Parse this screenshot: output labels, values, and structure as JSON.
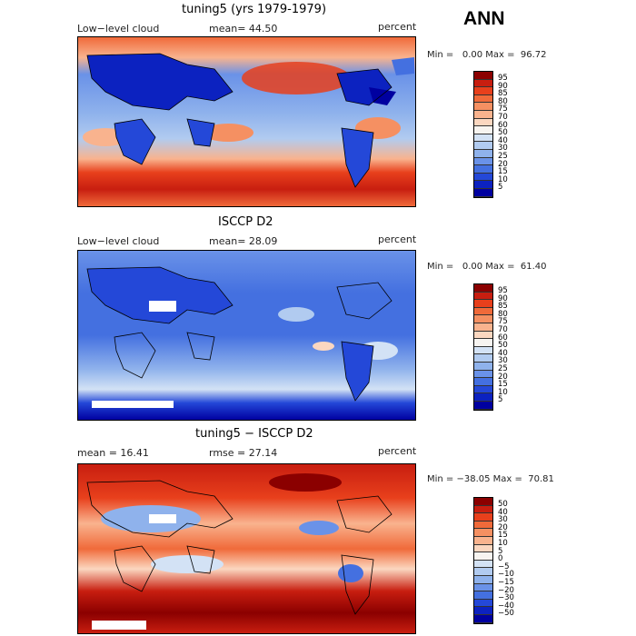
{
  "season": "ANN",
  "panels": [
    {
      "title": "tuning5 (yrs 1979-1979)",
      "left_label": "Low−level cloud",
      "mid_label": "mean=  44.50",
      "right_label": "percent",
      "minmax": "Min =   0.00 Max =  96.72",
      "levels": [
        "95",
        "90",
        "85",
        "80",
        "75",
        "70",
        "60",
        "50",
        "40",
        "30",
        "25",
        "20",
        "15",
        "10",
        "5"
      ],
      "colors": [
        "#8b0000",
        "#c81e10",
        "#e8401c",
        "#f06a3a",
        "#f59062",
        "#f9b38e",
        "#fbd7c0",
        "#f7f4f0",
        "#d3e2f5",
        "#b1cbf0",
        "#8fb2ec",
        "#6a92e8",
        "#4470e0",
        "#2448d8",
        "#0c22c0",
        "#0000a0"
      ]
    },
    {
      "title": "ISCCP D2",
      "left_label": "Low−level cloud",
      "mid_label": "mean=  28.09",
      "right_label": "percent",
      "minmax": "Min =   0.00 Max =  61.40",
      "levels": [
        "95",
        "90",
        "85",
        "80",
        "75",
        "70",
        "60",
        "50",
        "40",
        "30",
        "25",
        "20",
        "15",
        "10",
        "5"
      ],
      "colors": [
        "#8b0000",
        "#c81e10",
        "#e8401c",
        "#f06a3a",
        "#f59062",
        "#f9b38e",
        "#fbd7c0",
        "#f7f4f0",
        "#d3e2f5",
        "#b1cbf0",
        "#8fb2ec",
        "#6a92e8",
        "#4470e0",
        "#2448d8",
        "#0c22c0",
        "#0000a0"
      ]
    },
    {
      "title": "tuning5 − ISCCP D2",
      "left_label": "mean =  16.41",
      "mid_label": "rmse =  27.14",
      "right_label": "percent",
      "minmax": "Min = −38.05 Max =  70.81",
      "levels": [
        "50",
        "40",
        "30",
        "20",
        "15",
        "10",
        "5",
        "0",
        "−5",
        "−10",
        "−15",
        "−20",
        "−30",
        "−40",
        "−50"
      ],
      "colors": [
        "#8b0000",
        "#c81e10",
        "#e8401c",
        "#f06a3a",
        "#f59062",
        "#f9b38e",
        "#fbd7c0",
        "#f7f4f0",
        "#d3e2f5",
        "#b1cbf0",
        "#8fb2ec",
        "#6a92e8",
        "#4470e0",
        "#2448d8",
        "#0c22c0",
        "#0000a0"
      ]
    }
  ]
}
